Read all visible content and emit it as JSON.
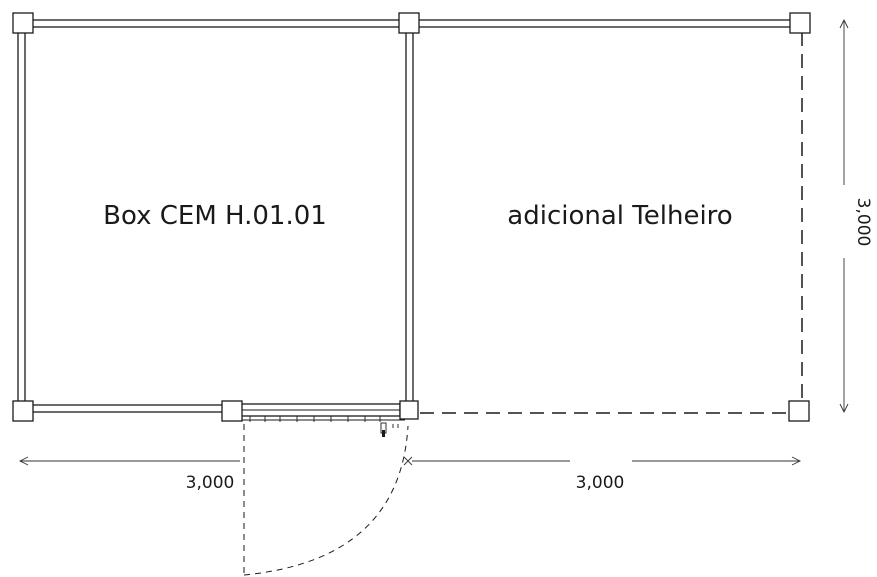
{
  "rooms": {
    "box": {
      "label": "Box CEM H.01.01"
    },
    "canopy": {
      "label": "adicional Telheiro"
    }
  },
  "dimensions": {
    "left_width": "3,000",
    "right_width": "3,000",
    "height": "3,000"
  },
  "colors": {
    "line": "#1a1a1a",
    "background": "#ffffff"
  }
}
